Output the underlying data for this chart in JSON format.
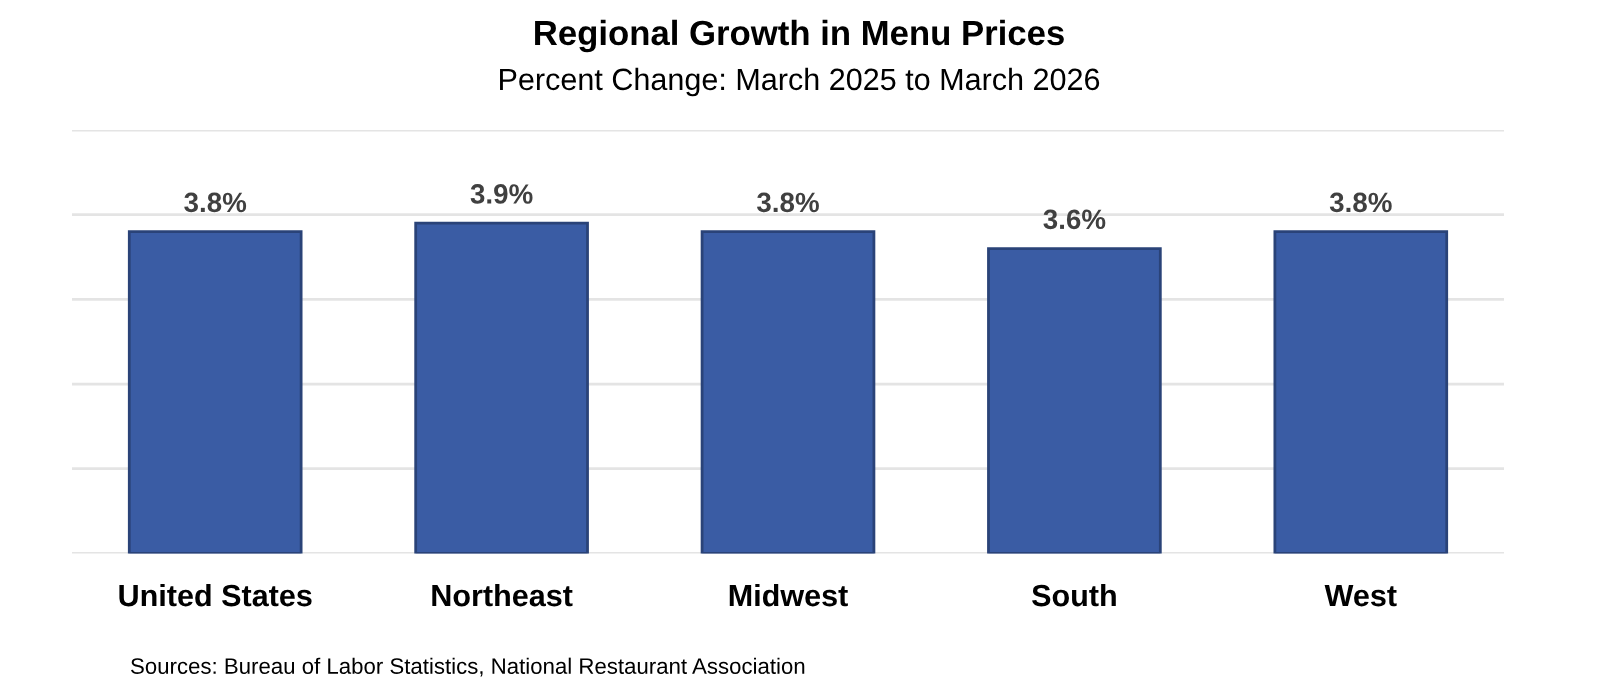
{
  "chart_data": {
    "type": "bar",
    "title": "Regional Growth in Menu Prices",
    "subtitle": "Percent Change: March 2025 to March 2026",
    "categories": [
      "United States",
      "Northeast",
      "Midwest",
      "South",
      "West"
    ],
    "values": [
      3.8,
      3.9,
      3.8,
      3.6,
      3.8
    ],
    "color": "#3a5ca4",
    "value_labels": [
      "3.8%",
      "3.9%",
      "3.8%",
      "3.6%",
      "3.8%"
    ],
    "ylim": [
      0,
      5
    ],
    "yticks": [
      {
        "value": 0,
        "label": null
      },
      {
        "value": 1,
        "label": null
      },
      {
        "value": 2,
        "label": null
      },
      {
        "value": 3,
        "label": null
      },
      {
        "value": 4,
        "label": null
      },
      {
        "value": 5,
        "label": null
      }
    ],
    "grid": "y",
    "tick_labels": "x",
    "annotations": [
      "Sources: Bureau of Labor Statistics, National Restaurant Association"
    ]
  }
}
